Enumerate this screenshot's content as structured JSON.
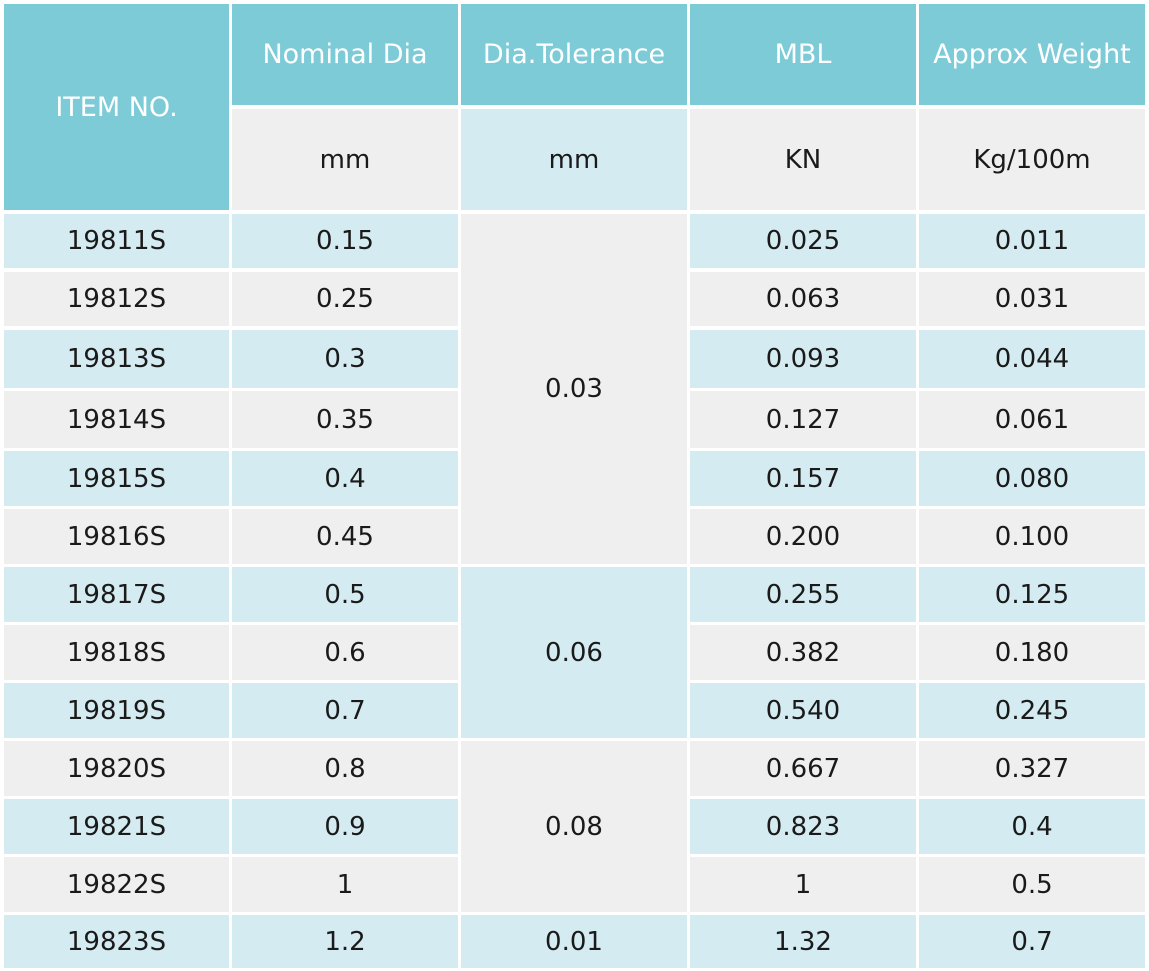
{
  "headers": {
    "item_no": "ITEM NO.",
    "nominal_dia": "Nominal Dia",
    "dia_tolerance": "Dia.Tolerance",
    "mbl": "MBL",
    "approx_weight": "Approx Weight"
  },
  "units": {
    "nominal_dia": "mm",
    "dia_tolerance": "mm",
    "mbl": "KN",
    "approx_weight": "Kg/100m"
  },
  "rows": [
    {
      "item": "19811S",
      "dia": "0.15",
      "mbl": "0.025",
      "weight": "0.011"
    },
    {
      "item": "19812S",
      "dia": "0.25",
      "mbl": "0.063",
      "weight": "0.031"
    },
    {
      "item": "19813S",
      "dia": "0.3",
      "mbl": "0.093",
      "weight": "0.044"
    },
    {
      "item": "19814S",
      "dia": "0.35",
      "mbl": "0.127",
      "weight": "0.061"
    },
    {
      "item": "19815S",
      "dia": "0.4",
      "mbl": "0.157",
      "weight": "0.080"
    },
    {
      "item": "19816S",
      "dia": "0.45",
      "mbl": "0.200",
      "weight": "0.100"
    },
    {
      "item": "19817S",
      "dia": "0.5",
      "mbl": "0.255",
      "weight": "0.125"
    },
    {
      "item": "19818S",
      "dia": "0.6",
      "mbl": "0.382",
      "weight": "0.180"
    },
    {
      "item": "19819S",
      "dia": "0.7",
      "mbl": "0.540",
      "weight": "0.245"
    },
    {
      "item": "19820S",
      "dia": "0.8",
      "mbl": "0.667",
      "weight": "0.327"
    },
    {
      "item": "19821S",
      "dia": "0.9",
      "mbl": "0.823",
      "weight": "0.4"
    },
    {
      "item": "19822S",
      "dia": "1",
      "mbl": "1",
      "weight": "0.5"
    },
    {
      "item": "19823S",
      "dia": "1.2",
      "mbl": "1.32",
      "weight": "0.7"
    }
  ],
  "tolerance_groups": [
    {
      "value": "0.03",
      "first_row": 0,
      "last_row": 5
    },
    {
      "value": "0.06",
      "first_row": 6,
      "last_row": 8
    },
    {
      "value": "0.08",
      "first_row": 9,
      "last_row": 11
    },
    {
      "value": "0.01",
      "first_row": 12,
      "last_row": 12
    }
  ],
  "colors": {
    "header_teal": "#7ecbd8",
    "row_light_blue": "#d4ebf1",
    "row_light_grey": "#efefef",
    "text": "#1a1a1a",
    "header_text": "#ffffff"
  }
}
